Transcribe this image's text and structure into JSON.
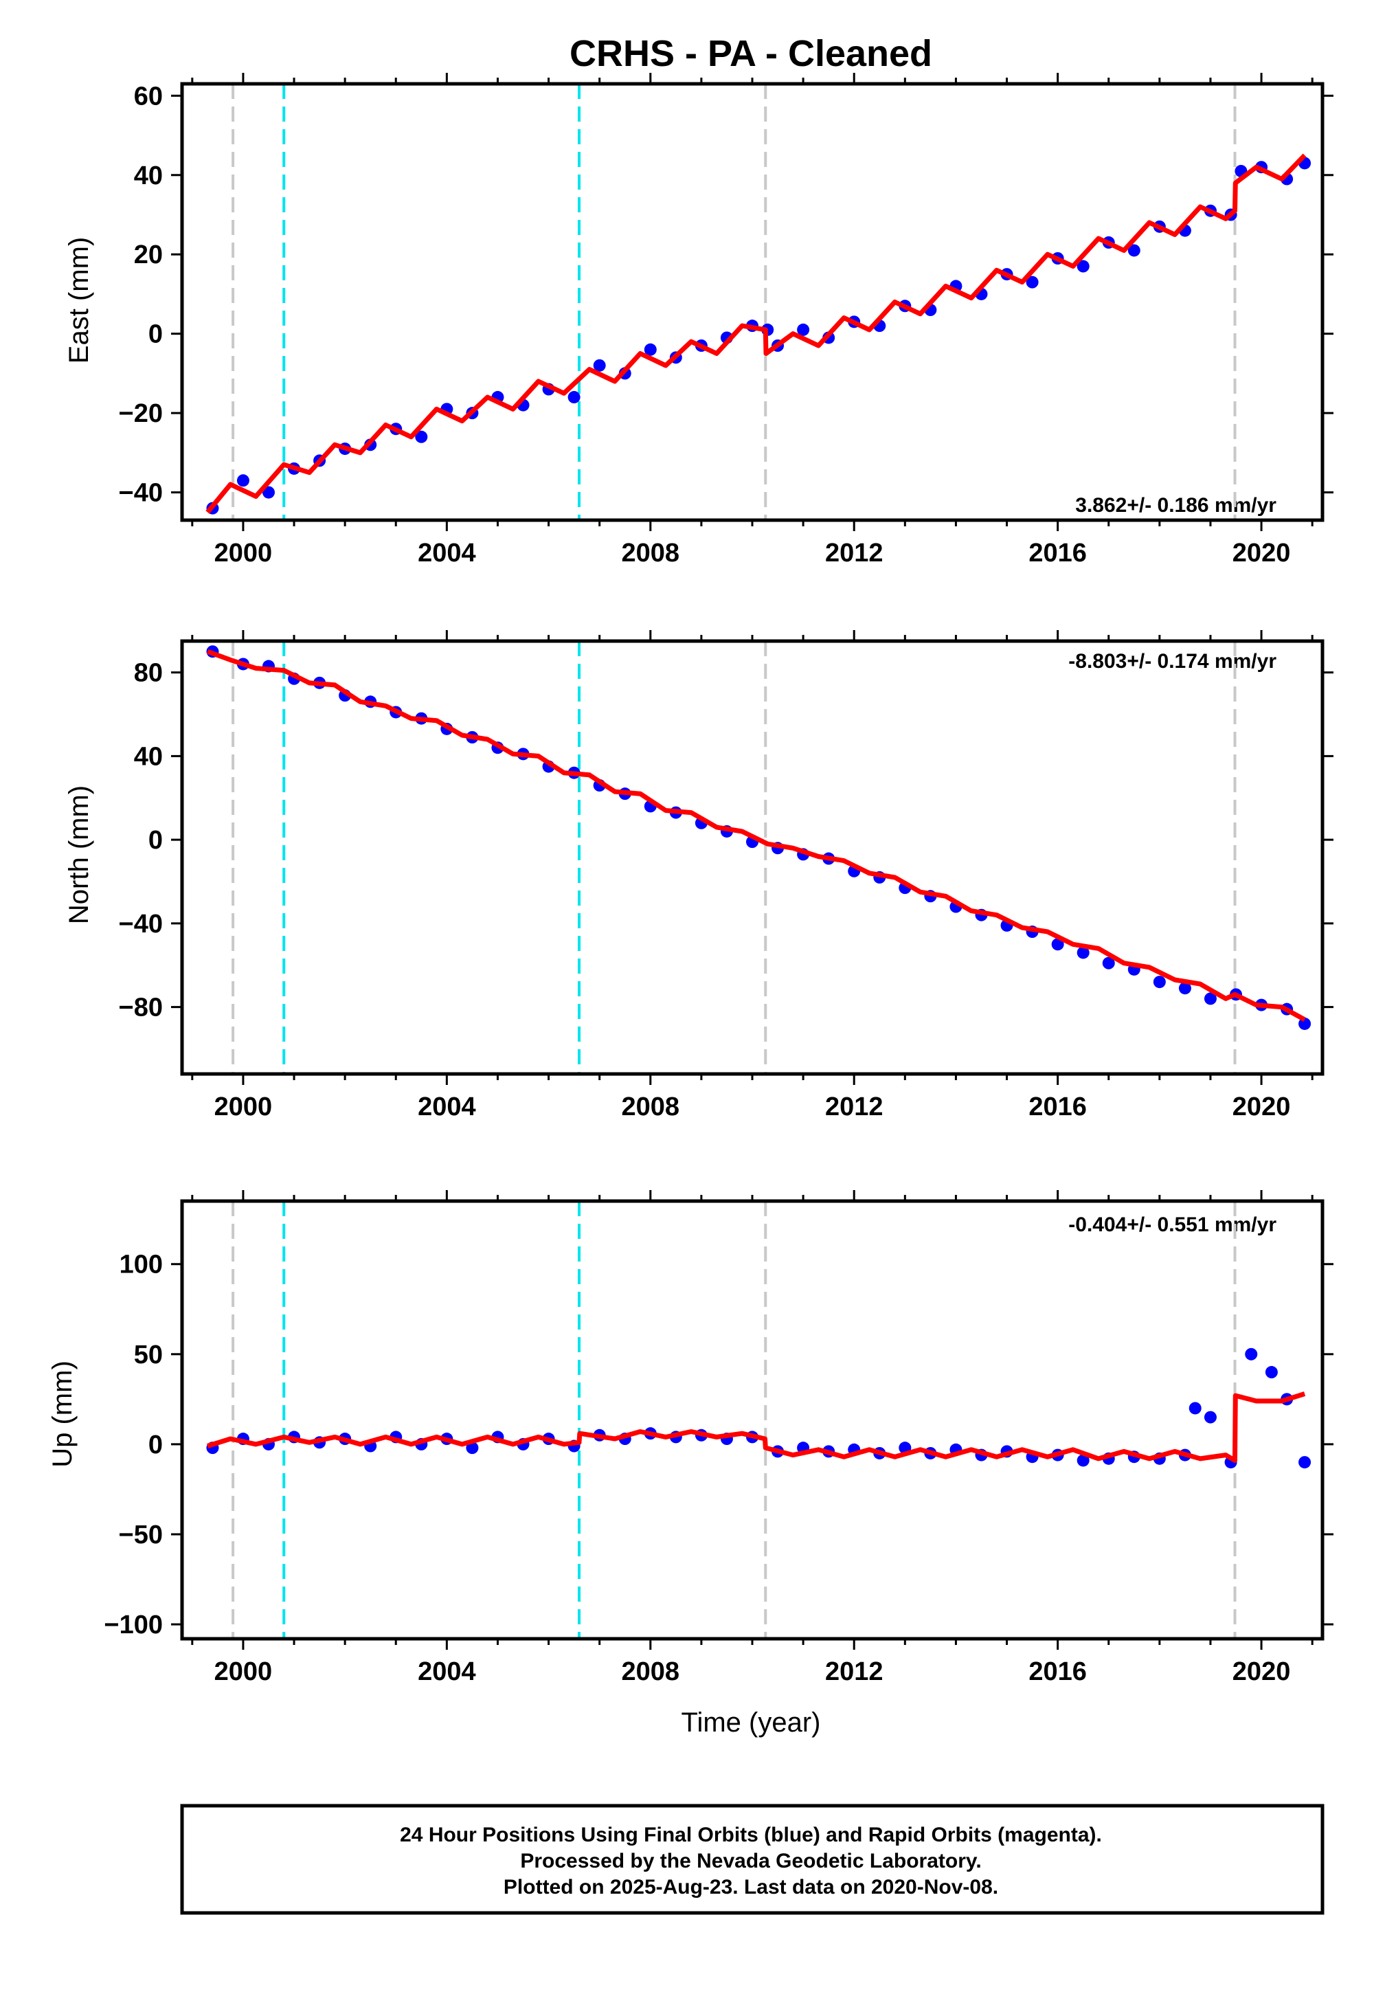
{
  "title": "CRHS  - PA - Cleaned",
  "xlabel": "Time (year)",
  "footer": {
    "line1": "24 Hour Positions Using Final Orbits (blue) and Rapid Orbits (magenta).",
    "line2": "Processed by the Nevada Geodetic Laboratory.",
    "line3": "Plotted on 2025-Aug-23. Last data on 2020-Nov-08."
  },
  "colors": {
    "points": "#0000ff",
    "model": "#ff0000",
    "steps_equipment": "#00e5ee",
    "steps_other": "#c8c8c8",
    "frame": "#000000"
  },
  "chart_data": [
    {
      "type": "scatter",
      "panel": "east",
      "ylabel": "East (mm)",
      "rate_label": "3.862+/- 0.186 mm/yr",
      "xlim": [
        1998.8,
        2021.2
      ],
      "ylim": [
        -47,
        63
      ],
      "xticks": [
        2000,
        2004,
        2008,
        2012,
        2016,
        2020
      ],
      "yticks": [
        -40,
        -20,
        0,
        20,
        40,
        60
      ],
      "series": [
        {
          "name": "",
          "kind": "points",
          "x": [
            1999.4,
            2000.0,
            2000.5,
            2001.0,
            2001.5,
            2002.0,
            2002.5,
            2003.0,
            2003.5,
            2004.0,
            2004.5,
            2005.0,
            2005.5,
            2006.0,
            2006.5,
            2007.0,
            2007.5,
            2008.0,
            2008.5,
            2009.0,
            2009.5,
            2010.0,
            2010.3,
            2010.5,
            2011.0,
            2011.5,
            2012.0,
            2012.5,
            2013.0,
            2013.5,
            2014.0,
            2014.5,
            2015.0,
            2015.5,
            2016.0,
            2016.5,
            2017.0,
            2017.5,
            2018.0,
            2018.5,
            2019.0,
            2019.4,
            2019.6,
            2020.0,
            2020.5,
            2020.85
          ],
          "y": [
            -44,
            -37,
            -40,
            -34,
            -32,
            -29,
            -28,
            -24,
            -26,
            -19,
            -20,
            -16,
            -18,
            -14,
            -16,
            -8,
            -10,
            -4,
            -6,
            -3,
            -1,
            2,
            1,
            -3,
            1,
            -1,
            3,
            2,
            7,
            6,
            12,
            10,
            15,
            13,
            19,
            17,
            23,
            21,
            27,
            26,
            31,
            30,
            41,
            42,
            39,
            43
          ]
        },
        {
          "name": "",
          "kind": "model",
          "x": [
            1999.3,
            1999.75,
            2000.25,
            2000.8,
            2001.3,
            2001.8,
            2002.3,
            2002.8,
            2003.3,
            2003.8,
            2004.3,
            2004.8,
            2005.3,
            2005.8,
            2006.3,
            2006.8,
            2007.3,
            2007.8,
            2008.3,
            2008.8,
            2009.3,
            2009.8,
            2010.26,
            2010.27,
            2010.8,
            2011.3,
            2011.8,
            2012.3,
            2012.8,
            2013.3,
            2013.8,
            2014.3,
            2014.8,
            2015.3,
            2015.8,
            2016.3,
            2016.8,
            2017.3,
            2017.8,
            2018.3,
            2018.8,
            2019.3,
            2019.48,
            2019.49,
            2019.9,
            2020.4,
            2020.85
          ],
          "y": [
            -45,
            -38,
            -41,
            -33,
            -35,
            -28,
            -30,
            -23,
            -26,
            -19,
            -22,
            -16,
            -19,
            -12,
            -15,
            -9,
            -12,
            -5,
            -8,
            -2,
            -5,
            2,
            1,
            -5,
            0,
            -3,
            4,
            1,
            8,
            5,
            12,
            9,
            16,
            13,
            20,
            17,
            24,
            21,
            28,
            25,
            32,
            29,
            31,
            38,
            42,
            39,
            45
          ]
        }
      ],
      "steps": [
        {
          "x": 1999.8,
          "kind": "other"
        },
        {
          "x": 2000.8,
          "kind": "equipment"
        },
        {
          "x": 2006.6,
          "kind": "equipment"
        },
        {
          "x": 2010.26,
          "kind": "other"
        },
        {
          "x": 2019.48,
          "kind": "other"
        }
      ]
    },
    {
      "type": "scatter",
      "panel": "north",
      "ylabel": "North (mm)",
      "rate_label": "-8.803+/- 0.174 mm/yr",
      "xlim": [
        1998.8,
        2021.2
      ],
      "ylim": [
        -112,
        95
      ],
      "xticks": [
        2000,
        2004,
        2008,
        2012,
        2016,
        2020
      ],
      "yticks": [
        -80,
        -40,
        0,
        40,
        80
      ],
      "series": [
        {
          "name": "",
          "kind": "points",
          "x": [
            1999.4,
            2000.0,
            2000.5,
            2001.0,
            2001.5,
            2002.0,
            2002.5,
            2003.0,
            2003.5,
            2004.0,
            2004.5,
            2005.0,
            2005.5,
            2006.0,
            2006.5,
            2007.0,
            2007.5,
            2008.0,
            2008.5,
            2009.0,
            2009.5,
            2010.0,
            2010.5,
            2011.0,
            2011.5,
            2012.0,
            2012.5,
            2013.0,
            2013.5,
            2014.0,
            2014.5,
            2015.0,
            2015.5,
            2016.0,
            2016.5,
            2017.0,
            2017.5,
            2018.0,
            2018.5,
            2019.0,
            2019.5,
            2020.0,
            2020.5,
            2020.85
          ],
          "y": [
            90,
            84,
            83,
            77,
            75,
            69,
            66,
            61,
            58,
            53,
            49,
            44,
            41,
            35,
            32,
            26,
            22,
            16,
            13,
            8,
            4,
            -1,
            -4,
            -7,
            -9,
            -15,
            -18,
            -23,
            -27,
            -32,
            -36,
            -41,
            -44,
            -50,
            -54,
            -59,
            -62,
            -68,
            -71,
            -76,
            -74,
            -79,
            -81,
            -88
          ]
        },
        {
          "name": "",
          "kind": "model",
          "x": [
            1999.3,
            1999.75,
            2000.25,
            2000.8,
            2001.3,
            2001.8,
            2002.3,
            2002.8,
            2003.3,
            2003.8,
            2004.3,
            2004.8,
            2005.3,
            2005.8,
            2006.3,
            2006.8,
            2007.3,
            2007.8,
            2008.3,
            2008.8,
            2009.3,
            2009.8,
            2010.3,
            2010.8,
            2011.3,
            2011.8,
            2012.3,
            2012.8,
            2013.3,
            2013.8,
            2014.3,
            2014.8,
            2015.3,
            2015.8,
            2016.3,
            2016.8,
            2017.3,
            2017.8,
            2018.3,
            2018.8,
            2019.3,
            2019.48,
            2019.9,
            2020.4,
            2020.85
          ],
          "y": [
            90,
            86,
            82,
            81,
            75,
            74,
            66,
            64,
            58,
            57,
            50,
            48,
            41,
            40,
            32,
            31,
            23,
            22,
            14,
            13,
            6,
            4,
            -2,
            -4,
            -8,
            -10,
            -16,
            -18,
            -25,
            -27,
            -34,
            -36,
            -42,
            -44,
            -50,
            -52,
            -59,
            -61,
            -67,
            -69,
            -76,
            -74,
            -79,
            -80,
            -86
          ]
        }
      ],
      "steps": [
        {
          "x": 1999.8,
          "kind": "other"
        },
        {
          "x": 2000.8,
          "kind": "equipment"
        },
        {
          "x": 2006.6,
          "kind": "equipment"
        },
        {
          "x": 2010.26,
          "kind": "other"
        },
        {
          "x": 2019.48,
          "kind": "other"
        }
      ]
    },
    {
      "type": "scatter",
      "panel": "up",
      "ylabel": "Up (mm)",
      "rate_label": "-0.404+/- 0.551 mm/yr",
      "xlim": [
        1998.8,
        2021.2
      ],
      "ylim": [
        -108,
        135
      ],
      "xticks": [
        2000,
        2004,
        2008,
        2012,
        2016,
        2020
      ],
      "yticks": [
        -100,
        -50,
        0,
        50,
        100
      ],
      "series": [
        {
          "name": "",
          "kind": "points",
          "x": [
            1999.4,
            2000.0,
            2000.5,
            2001.0,
            2001.5,
            2002.0,
            2002.5,
            2003.0,
            2003.5,
            2004.0,
            2004.5,
            2005.0,
            2005.5,
            2006.0,
            2006.5,
            2007.0,
            2007.5,
            2008.0,
            2008.5,
            2009.0,
            2009.5,
            2010.0,
            2010.5,
            2011.0,
            2011.5,
            2012.0,
            2012.5,
            2013.0,
            2013.5,
            2014.0,
            2014.5,
            2015.0,
            2015.5,
            2016.0,
            2016.5,
            2017.0,
            2017.5,
            2018.0,
            2018.5,
            2018.7,
            2019.0,
            2019.4,
            2019.8,
            2020.2,
            2020.5,
            2020.85
          ],
          "y": [
            -2,
            3,
            0,
            4,
            1,
            3,
            -1,
            4,
            0,
            3,
            -2,
            4,
            0,
            3,
            -1,
            5,
            3,
            6,
            4,
            5,
            3,
            4,
            -4,
            -2,
            -4,
            -3,
            -5,
            -2,
            -5,
            -3,
            -6,
            -4,
            -7,
            -6,
            -9,
            -8,
            -7,
            -8,
            -6,
            20,
            15,
            -10,
            50,
            40,
            25,
            -10
          ]
        },
        {
          "name": "",
          "kind": "model",
          "x": [
            1999.3,
            1999.75,
            2000.25,
            2000.8,
            2001.3,
            2001.8,
            2002.3,
            2002.8,
            2003.3,
            2003.8,
            2004.3,
            2004.8,
            2005.3,
            2005.8,
            2006.3,
            2006.6,
            2006.61,
            2007.3,
            2007.8,
            2008.3,
            2008.8,
            2009.3,
            2009.8,
            2010.25,
            2010.26,
            2010.8,
            2011.3,
            2011.8,
            2012.3,
            2012.8,
            2013.3,
            2013.8,
            2014.3,
            2014.8,
            2015.3,
            2015.8,
            2016.3,
            2016.8,
            2017.3,
            2017.8,
            2018.3,
            2018.8,
            2019.3,
            2019.48,
            2019.49,
            2019.9,
            2020.4,
            2020.85
          ],
          "y": [
            -1,
            3,
            0,
            4,
            1,
            4,
            0,
            4,
            0,
            4,
            0,
            4,
            0,
            4,
            0,
            1,
            6,
            3,
            7,
            4,
            7,
            4,
            6,
            3,
            -2,
            -6,
            -3,
            -7,
            -3,
            -7,
            -3,
            -7,
            -3,
            -7,
            -3,
            -7,
            -3,
            -8,
            -4,
            -8,
            -4,
            -8,
            -6,
            -9,
            27,
            24,
            24,
            28
          ]
        }
      ],
      "steps": [
        {
          "x": 1999.8,
          "kind": "other"
        },
        {
          "x": 2000.8,
          "kind": "equipment"
        },
        {
          "x": 2006.6,
          "kind": "equipment"
        },
        {
          "x": 2010.26,
          "kind": "other"
        },
        {
          "x": 2019.48,
          "kind": "other"
        }
      ]
    }
  ]
}
